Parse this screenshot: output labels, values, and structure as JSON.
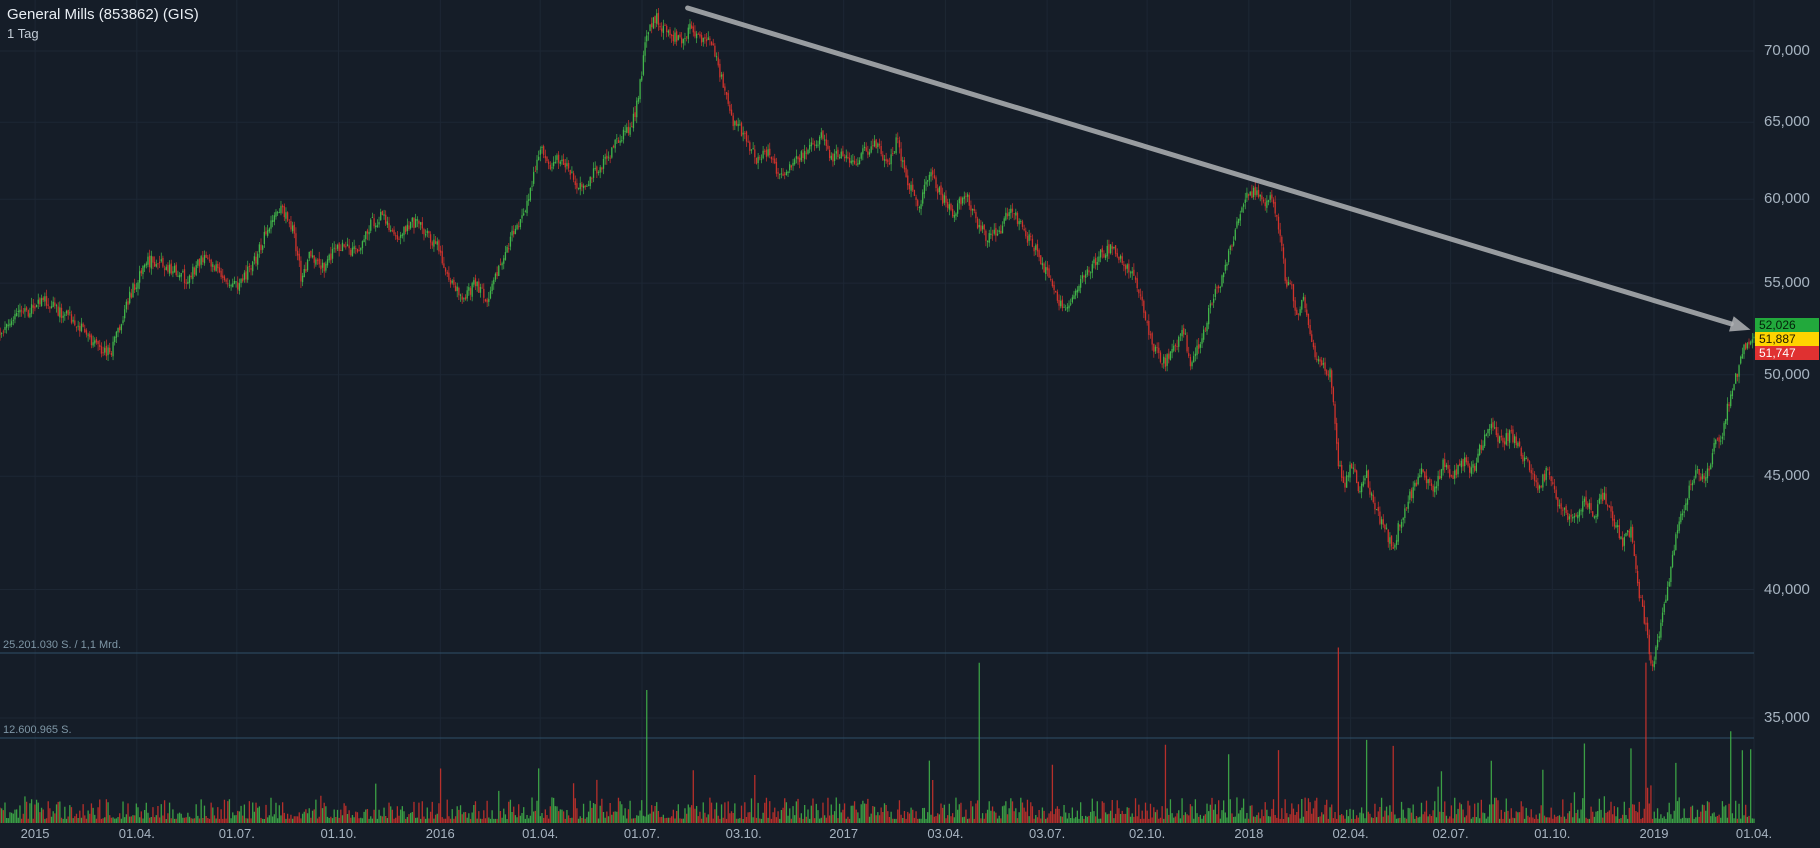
{
  "header": {
    "title": "General Mills (853862) (GIS)",
    "timeframe": "1 Tag"
  },
  "colors": {
    "background": "#151d28",
    "grid": "#1d2734",
    "up": "#42b64a",
    "down": "#d2332c",
    "arrow": "#b0b3b5",
    "vol_line": "#2e5068",
    "axis_text": "#a7b4c1",
    "title_text": "#e9eef3",
    "vol_text": "#7f97a6"
  },
  "chart_data": {
    "type": "candlestick+volume",
    "title": "General Mills (853862) (GIS)",
    "timeframe": "1 Tag",
    "y_scale": "log",
    "ylim_visible": [
      35,
      73.5
    ],
    "last_price": 52.026,
    "price_labels": [
      {
        "label": "52,026",
        "value": 52.026,
        "color": "green"
      },
      {
        "label": "51,887",
        "value": 51.887,
        "color": "yellow"
      },
      {
        "label": "51,747",
        "value": 51.747,
        "color": "red"
      }
    ],
    "y_ticks": [
      {
        "label": "70,000",
        "value": 70
      },
      {
        "label": "65,000",
        "value": 65
      },
      {
        "label": "60,000",
        "value": 60
      },
      {
        "label": "55,000",
        "value": 55
      },
      {
        "label": "50,000",
        "value": 50
      },
      {
        "label": "45,000",
        "value": 45
      },
      {
        "label": "40,000",
        "value": 40
      },
      {
        "label": "35,000",
        "value": 35
      }
    ],
    "x_ticks": [
      {
        "label": "2015",
        "t": 0.02
      },
      {
        "label": "01.04.",
        "t": 0.078
      },
      {
        "label": "01.07.",
        "t": 0.135
      },
      {
        "label": "01.10.",
        "t": 0.193
      },
      {
        "label": "2016",
        "t": 0.251
      },
      {
        "label": "01.04.",
        "t": 0.308
      },
      {
        "label": "01.07.",
        "t": 0.366
      },
      {
        "label": "03.10.",
        "t": 0.424
      },
      {
        "label": "2017",
        "t": 0.481
      },
      {
        "label": "03.04.",
        "t": 0.539
      },
      {
        "label": "03.07.",
        "t": 0.597
      },
      {
        "label": "02.10.",
        "t": 0.654
      },
      {
        "label": "2018",
        "t": 0.712
      },
      {
        "label": "02.04.",
        "t": 0.77
      },
      {
        "label": "02.07.",
        "t": 0.827
      },
      {
        "label": "01.10.",
        "t": 0.885
      },
      {
        "label": "2019",
        "t": 0.943
      },
      {
        "label": "01.04.",
        "t": 1.0
      }
    ],
    "volume_lines": [
      {
        "label": "25.201.030 S. / 1,1 Mrd.",
        "value_millions": 25.20103
      },
      {
        "label": "12.600.965 S.",
        "value_millions": 12.600965
      }
    ],
    "annotations": [
      {
        "type": "trend-arrow",
        "from_t": 0.392,
        "from_price": 73.2,
        "to_t": 0.998,
        "to_price": 52.4
      }
    ],
    "candle_count": 1056,
    "seed": 9,
    "volume_base_millions": 2.2,
    "volume_spikes": [
      [
        0.307,
        7
      ],
      [
        0.369,
        18
      ],
      [
        0.43,
        6
      ],
      [
        0.53,
        8
      ],
      [
        0.558,
        22
      ],
      [
        0.6,
        6
      ],
      [
        0.664,
        11
      ],
      [
        0.7,
        7
      ],
      [
        0.729,
        8
      ],
      [
        0.763,
        24
      ],
      [
        0.779,
        10
      ],
      [
        0.794,
        9
      ],
      [
        0.85,
        8
      ],
      [
        0.88,
        7
      ],
      [
        0.903,
        6
      ],
      [
        0.93,
        10
      ],
      [
        0.938,
        20
      ],
      [
        0.955,
        8
      ],
      [
        0.987,
        13
      ],
      [
        0.993,
        9
      ],
      [
        0.998,
        10
      ]
    ],
    "price_path": [
      [
        0,
        52.3
      ],
      [
        0.013,
        53.3
      ],
      [
        0.026,
        54
      ],
      [
        0.04,
        53
      ],
      [
        0.053,
        51.8
      ],
      [
        0.063,
        51
      ],
      [
        0.073,
        54
      ],
      [
        0.083,
        56.3
      ],
      [
        0.096,
        56
      ],
      [
        0.106,
        55.2
      ],
      [
        0.116,
        56.5
      ],
      [
        0.126,
        55.5
      ],
      [
        0.136,
        54.8
      ],
      [
        0.146,
        56.5
      ],
      [
        0.155,
        58.8
      ],
      [
        0.16,
        59.7
      ],
      [
        0.167,
        58
      ],
      [
        0.172,
        55.2
      ],
      [
        0.177,
        56.8
      ],
      [
        0.184,
        55.8
      ],
      [
        0.192,
        57.2
      ],
      [
        0.198,
        57
      ],
      [
        0.205,
        56.7
      ],
      [
        0.212,
        58.6
      ],
      [
        0.218,
        58.9
      ],
      [
        0.225,
        57.6
      ],
      [
        0.231,
        58.2
      ],
      [
        0.238,
        58.7
      ],
      [
        0.245,
        57.8
      ],
      [
        0.251,
        56.8
      ],
      [
        0.258,
        54.8
      ],
      [
        0.265,
        54.2
      ],
      [
        0.271,
        55
      ],
      [
        0.278,
        54
      ],
      [
        0.284,
        55.8
      ],
      [
        0.291,
        57.6
      ],
      [
        0.298,
        58.8
      ],
      [
        0.303,
        60.8
      ],
      [
        0.308,
        63.3
      ],
      [
        0.313,
        62.2
      ],
      [
        0.32,
        62.6
      ],
      [
        0.327,
        61.2
      ],
      [
        0.333,
        60.6
      ],
      [
        0.34,
        62
      ],
      [
        0.347,
        62.6
      ],
      [
        0.353,
        64
      ],
      [
        0.36,
        64.6
      ],
      [
        0.364,
        66.8
      ],
      [
        0.369,
        71.3
      ],
      [
        0.374,
        72.4
      ],
      [
        0.381,
        71.3
      ],
      [
        0.388,
        70.6
      ],
      [
        0.394,
        71.8
      ],
      [
        0.401,
        70.6
      ],
      [
        0.406,
        70.9
      ],
      [
        0.411,
        68.2
      ],
      [
        0.417,
        65.2
      ],
      [
        0.424,
        64.1
      ],
      [
        0.431,
        62.6
      ],
      [
        0.437,
        63.1
      ],
      [
        0.444,
        61.7
      ],
      [
        0.45,
        62
      ],
      [
        0.457,
        62.7
      ],
      [
        0.464,
        63.6
      ],
      [
        0.469,
        64.2
      ],
      [
        0.474,
        62.6
      ],
      [
        0.48,
        63.1
      ],
      [
        0.487,
        62.1
      ],
      [
        0.493,
        63.1
      ],
      [
        0.5,
        63.6
      ],
      [
        0.507,
        62.1
      ],
      [
        0.511,
        63.9
      ],
      [
        0.517,
        61.1
      ],
      [
        0.524,
        59.6
      ],
      [
        0.53,
        61.6
      ],
      [
        0.537,
        60.1
      ],
      [
        0.544,
        59.1
      ],
      [
        0.55,
        60.6
      ],
      [
        0.557,
        58.6
      ],
      [
        0.563,
        57.6
      ],
      [
        0.57,
        58.1
      ],
      [
        0.577,
        59.6
      ],
      [
        0.583,
        58.1
      ],
      [
        0.59,
        57.1
      ],
      [
        0.597,
        55.6
      ],
      [
        0.603,
        54.1
      ],
      [
        0.607,
        53.6
      ],
      [
        0.614,
        54.6
      ],
      [
        0.62,
        55.6
      ],
      [
        0.627,
        56.6
      ],
      [
        0.634,
        57.1
      ],
      [
        0.64,
        56.1
      ],
      [
        0.647,
        55.4
      ],
      [
        0.653,
        53.1
      ],
      [
        0.657,
        51.6
      ],
      [
        0.664,
        50.6
      ],
      [
        0.671,
        51.6
      ],
      [
        0.675,
        52.4
      ],
      [
        0.679,
        50.2
      ],
      [
        0.685,
        52.1
      ],
      [
        0.692,
        54.1
      ],
      [
        0.698,
        55.6
      ],
      [
        0.702,
        57.1
      ],
      [
        0.709,
        60
      ],
      [
        0.716,
        60.5
      ],
      [
        0.721,
        59.6
      ],
      [
        0.725,
        60.1
      ],
      [
        0.729,
        58.3
      ],
      [
        0.733,
        55.1
      ],
      [
        0.737,
        54.6
      ],
      [
        0.739,
        52.8
      ],
      [
        0.743,
        54.1
      ],
      [
        0.75,
        51.1
      ],
      [
        0.755,
        50.4
      ],
      [
        0.759,
        49.9
      ],
      [
        0.763,
        45.6
      ],
      [
        0.767,
        44.6
      ],
      [
        0.771,
        45.6
      ],
      [
        0.775,
        44.1
      ],
      [
        0.779,
        45.1
      ],
      [
        0.783,
        43.6
      ],
      [
        0.788,
        42.9
      ],
      [
        0.794,
        41.7
      ],
      [
        0.799,
        43.1
      ],
      [
        0.804,
        44.1
      ],
      [
        0.811,
        45.3
      ],
      [
        0.817,
        44.3
      ],
      [
        0.823,
        45.6
      ],
      [
        0.828,
        44.8
      ],
      [
        0.833,
        45.9
      ],
      [
        0.839,
        45.1
      ],
      [
        0.844,
        46.3
      ],
      [
        0.85,
        47.4
      ],
      [
        0.856,
        46.6
      ],
      [
        0.861,
        47.1
      ],
      [
        0.866,
        46.3
      ],
      [
        0.872,
        45.4
      ],
      [
        0.877,
        44.3
      ],
      [
        0.882,
        45.3
      ],
      [
        0.888,
        43.9
      ],
      [
        0.893,
        43.3
      ],
      [
        0.898,
        42.9
      ],
      [
        0.903,
        43.9
      ],
      [
        0.909,
        43.3
      ],
      [
        0.914,
        44.1
      ],
      [
        0.919,
        43.3
      ],
      [
        0.925,
        41.9
      ],
      [
        0.93,
        42.6
      ],
      [
        0.934,
        40.1
      ],
      [
        0.938,
        38.6
      ],
      [
        0.942,
        36.7
      ],
      [
        0.946,
        38.3
      ],
      [
        0.95,
        39.6
      ],
      [
        0.955,
        42.1
      ],
      [
        0.96,
        43.6
      ],
      [
        0.964,
        44.6
      ],
      [
        0.968,
        45.3
      ],
      [
        0.972,
        44.6
      ],
      [
        0.977,
        46.3
      ],
      [
        0.983,
        47.3
      ],
      [
        0.987,
        49.3
      ],
      [
        0.991,
        50.3
      ],
      [
        0.994,
        51.3
      ],
      [
        1,
        52.026
      ]
    ]
  }
}
